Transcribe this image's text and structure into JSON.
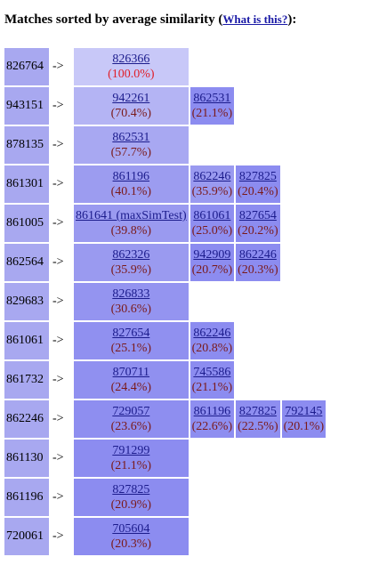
{
  "heading": {
    "prefix": "Matches sorted by average similarity (",
    "link": "What is this?",
    "suffix": "):"
  },
  "rows": [
    {
      "src": "826764",
      "arrow": "->",
      "matches": [
        {
          "id": "826366",
          "pct": "(100.0%)",
          "color": "#c8c8f8"
        }
      ]
    },
    {
      "src": "943151",
      "arrow": "->",
      "matches": [
        {
          "id": "942261",
          "pct": "(70.4%)",
          "color": "#b4b4f4"
        },
        {
          "id": "862531",
          "pct": "(21.1%)",
          "color": "#8c8cf0"
        }
      ]
    },
    {
      "src": "878135",
      "arrow": "->",
      "matches": [
        {
          "id": "862531",
          "pct": "(57.7%)",
          "color": "#a8a8f2"
        }
      ]
    },
    {
      "src": "861301",
      "arrow": "->",
      "matches": [
        {
          "id": "861196",
          "pct": "(40.1%)",
          "color": "#9c9cf0"
        },
        {
          "id": "862246",
          "pct": "(35.9%)",
          "color": "#9a9af0"
        },
        {
          "id": "827825",
          "pct": "(20.4%)",
          "color": "#8c8cf0"
        }
      ]
    },
    {
      "src": "861005",
      "arrow": "->",
      "matches": [
        {
          "id": "861641 (maxSimTest)",
          "pct": "(39.8%)",
          "color": "#9a9af0"
        },
        {
          "id": "861061",
          "pct": "(25.0%)",
          "color": "#8e8ef0"
        },
        {
          "id": "827654",
          "pct": "(20.2%)",
          "color": "#8c8cf0"
        }
      ]
    },
    {
      "src": "862564",
      "arrow": "->",
      "matches": [
        {
          "id": "862326",
          "pct": "(35.9%)",
          "color": "#9a9af0"
        },
        {
          "id": "942909",
          "pct": "(20.7%)",
          "color": "#8c8cf0"
        },
        {
          "id": "862246",
          "pct": "(20.3%)",
          "color": "#8c8cf0"
        }
      ]
    },
    {
      "src": "829683",
      "arrow": "->",
      "matches": [
        {
          "id": "826833",
          "pct": "(30.6%)",
          "color": "#9494f0"
        }
      ]
    },
    {
      "src": "861061",
      "arrow": "->",
      "matches": [
        {
          "id": "827654",
          "pct": "(25.1%)",
          "color": "#9090f0"
        },
        {
          "id": "862246",
          "pct": "(20.8%)",
          "color": "#8c8cf0"
        }
      ]
    },
    {
      "src": "861732",
      "arrow": "->",
      "matches": [
        {
          "id": "870711",
          "pct": "(24.4%)",
          "color": "#9090f0"
        },
        {
          "id": "745586",
          "pct": "(21.1%)",
          "color": "#8c8cf0"
        }
      ]
    },
    {
      "src": "862246",
      "arrow": "->",
      "matches": [
        {
          "id": "729057",
          "pct": "(23.6%)",
          "color": "#8e8ef0"
        },
        {
          "id": "861196",
          "pct": "(22.6%)",
          "color": "#8e8ef0"
        },
        {
          "id": "827825",
          "pct": "(22.5%)",
          "color": "#8e8ef0"
        },
        {
          "id": "792145",
          "pct": "(20.1%)",
          "color": "#8c8cf0"
        }
      ]
    },
    {
      "src": "861130",
      "arrow": "->",
      "matches": [
        {
          "id": "791299",
          "pct": "(21.1%)",
          "color": "#8c8cf0"
        }
      ]
    },
    {
      "src": "861196",
      "arrow": "->",
      "matches": [
        {
          "id": "827825",
          "pct": "(20.9%)",
          "color": "#8c8cf0"
        }
      ]
    },
    {
      "src": "720061",
      "arrow": "->",
      "matches": [
        {
          "id": "705604",
          "pct": "(20.3%)",
          "color": "#8c8cf0"
        }
      ]
    }
  ]
}
